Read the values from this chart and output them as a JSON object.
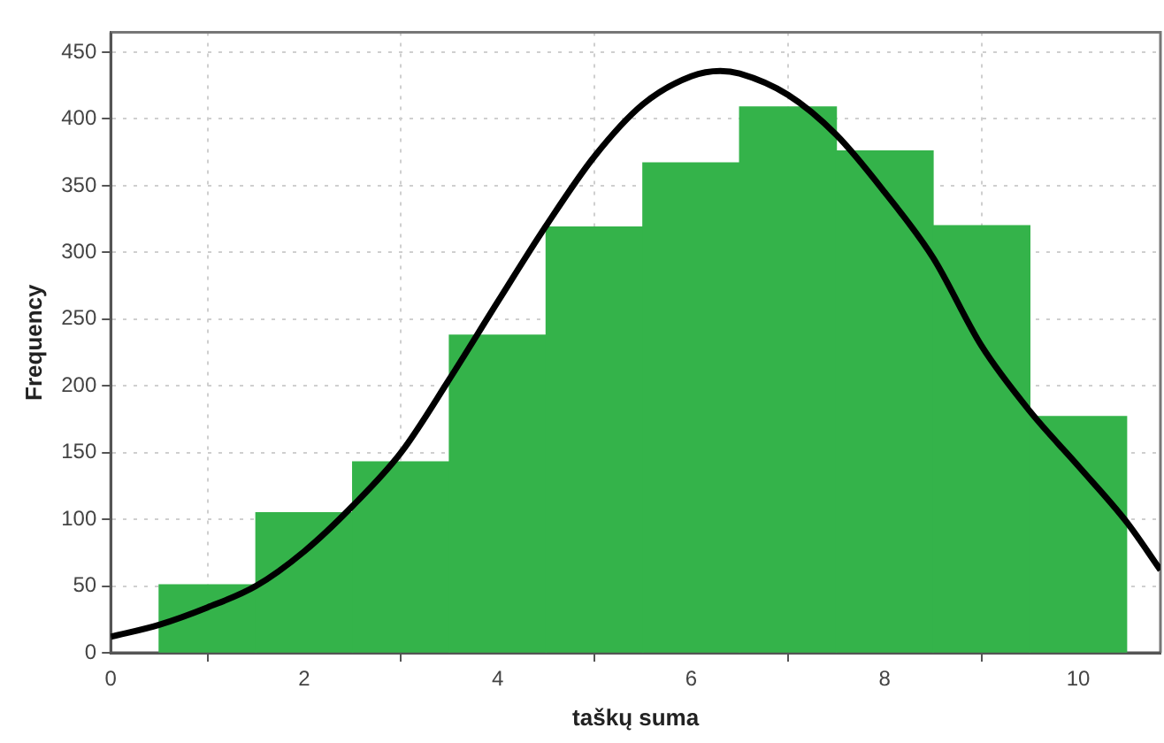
{
  "chart_data": {
    "type": "histogram",
    "xlabel": "taškų suma",
    "ylabel": "Frequency",
    "bins": [
      0.5,
      1.5,
      2.5,
      3.5,
      4.5,
      5.5,
      6.5,
      7.5,
      8.5,
      9.5,
      10.5
    ],
    "values": [
      51,
      105,
      143,
      238,
      319,
      367,
      409,
      376,
      320,
      177
    ],
    "color": "#34b34a",
    "series": [
      {
        "type": "line",
        "color": "#000000",
        "x": [
          0,
          0.5,
          1,
          1.5,
          2,
          2.5,
          3,
          3.5,
          4,
          4.5,
          5,
          5.5,
          6,
          6.3,
          6.5,
          7,
          7.5,
          8,
          8.5,
          9,
          9.5,
          10,
          10.5,
          10.85
        ],
        "values": [
          12,
          21,
          34,
          50,
          76,
          110,
          150,
          205,
          263,
          320,
          372,
          411,
          432,
          436,
          434,
          418,
          388,
          345,
          296,
          230,
          181,
          140,
          98,
          62
        ]
      }
    ],
    "xlim": [
      0,
      10.85
    ],
    "ylim": [
      0,
      465
    ],
    "xticks": [
      0,
      2,
      4,
      6,
      8,
      10
    ],
    "yticks": [
      0,
      50,
      100,
      150,
      200,
      250,
      300,
      350,
      400,
      450
    ],
    "grid": true,
    "legend": false,
    "marker": "none",
    "line_style": "solid"
  }
}
